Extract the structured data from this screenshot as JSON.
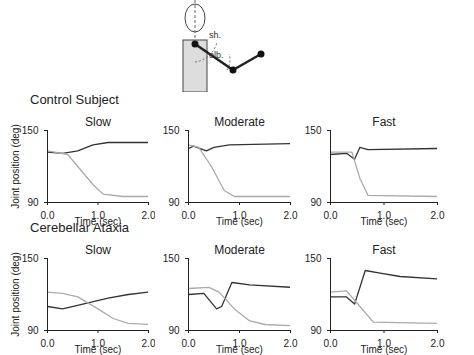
{
  "figure_labels": [
    "sh.",
    "elb."
  ],
  "row_titles": [
    "Control Subject",
    "Cerebellar Ataxia"
  ],
  "chart_data": [
    {
      "type": "line",
      "title": "Slow",
      "x_label": "Time (sec)",
      "y_label": "Joint position (deg)",
      "xlim": [
        0,
        2
      ],
      "xticks": [
        0,
        1,
        2
      ],
      "ylim": [
        90,
        150
      ],
      "yticks": [
        90,
        150
      ],
      "series": [
        {
          "name": "sh.",
          "color": "#333333",
          "x": [
            0,
            0.3,
            0.6,
            0.9,
            1.2,
            2
          ],
          "values": [
            132,
            131,
            133,
            138,
            140,
            140
          ]
        },
        {
          "name": "elb.",
          "color": "#aaaaaa",
          "x": [
            0,
            0.4,
            0.6,
            0.9,
            1.1,
            1.5,
            2
          ],
          "values": [
            133,
            130,
            120,
            105,
            97,
            95,
            95
          ]
        }
      ]
    },
    {
      "type": "line",
      "title": "Moderate",
      "x_label": "Time (sec)",
      "xlim": [
        0,
        2
      ],
      "xticks": [
        0,
        1,
        2
      ],
      "ylim": [
        90,
        150
      ],
      "yticks": [
        90,
        150
      ],
      "series": [
        {
          "name": "sh.",
          "color": "#333333",
          "x": [
            0,
            0.1,
            0.35,
            0.5,
            0.8,
            2
          ],
          "values": [
            135,
            137,
            133,
            136,
            138,
            139
          ]
        },
        {
          "name": "elb.",
          "color": "#aaaaaa",
          "x": [
            0,
            0.2,
            0.45,
            0.7,
            0.9,
            2
          ],
          "values": [
            138,
            136,
            120,
            100,
            95,
            95
          ]
        }
      ]
    },
    {
      "type": "line",
      "title": "Fast",
      "x_label": "Time (sec)",
      "xlim": [
        0,
        2
      ],
      "xticks": [
        0,
        1,
        2
      ],
      "ylim": [
        90,
        150
      ],
      "yticks": [
        90,
        150
      ],
      "series": [
        {
          "name": "sh.",
          "color": "#333333",
          "x": [
            0,
            0.3,
            0.45,
            0.55,
            0.7,
            2
          ],
          "values": [
            130,
            131,
            126,
            136,
            134,
            135
          ]
        },
        {
          "name": "elb.",
          "color": "#aaaaaa",
          "x": [
            0,
            0.4,
            0.55,
            0.7,
            2
          ],
          "values": [
            132,
            132,
            110,
            96,
            95
          ]
        }
      ]
    },
    {
      "type": "line",
      "title": "Slow",
      "x_label": "Time (sec)",
      "y_label": "Joint position (deg)",
      "xlim": [
        0,
        2
      ],
      "xticks": [
        0,
        1,
        2
      ],
      "ylim": [
        90,
        150
      ],
      "yticks": [
        90,
        150
      ],
      "series": [
        {
          "name": "sh.",
          "color": "#333333",
          "x": [
            0,
            0.3,
            0.7,
            1.2,
            1.6,
            2
          ],
          "values": [
            110,
            108,
            112,
            117,
            120,
            122
          ]
        },
        {
          "name": "elb.",
          "color": "#aaaaaa",
          "x": [
            0,
            0.3,
            0.6,
            1.0,
            1.3,
            1.6,
            2
          ],
          "values": [
            122,
            121,
            118,
            108,
            100,
            96,
            95
          ]
        }
      ]
    },
    {
      "type": "line",
      "title": "Moderate",
      "x_label": "Time (sec)",
      "xlim": [
        0,
        2
      ],
      "xticks": [
        0,
        1,
        2
      ],
      "ylim": [
        90,
        150
      ],
      "yticks": [
        90,
        150
      ],
      "series": [
        {
          "name": "sh.",
          "color": "#333333",
          "x": [
            0,
            0.3,
            0.55,
            0.65,
            0.85,
            1.2,
            2
          ],
          "values": [
            120,
            121,
            108,
            110,
            130,
            128,
            126
          ]
        },
        {
          "name": "elb.",
          "color": "#aaaaaa",
          "x": [
            0,
            0.4,
            0.6,
            0.9,
            1.2,
            1.5,
            2
          ],
          "values": [
            125,
            126,
            122,
            108,
            98,
            95,
            94
          ]
        }
      ]
    },
    {
      "type": "line",
      "title": "Fast",
      "x_label": "Time (sec)",
      "xlim": [
        0,
        2
      ],
      "xticks": [
        0,
        1,
        2
      ],
      "ylim": [
        90,
        150
      ],
      "yticks": [
        90,
        150
      ],
      "series": [
        {
          "name": "sh.",
          "color": "#333333",
          "x": [
            0,
            0.3,
            0.45,
            0.65,
            0.9,
            1.3,
            2
          ],
          "values": [
            118,
            118,
            112,
            140,
            138,
            135,
            133
          ]
        },
        {
          "name": "elb.",
          "color": "#aaaaaa",
          "x": [
            0,
            0.3,
            0.55,
            0.8,
            2
          ],
          "values": [
            122,
            123,
            110,
            97,
            96
          ]
        }
      ]
    }
  ]
}
